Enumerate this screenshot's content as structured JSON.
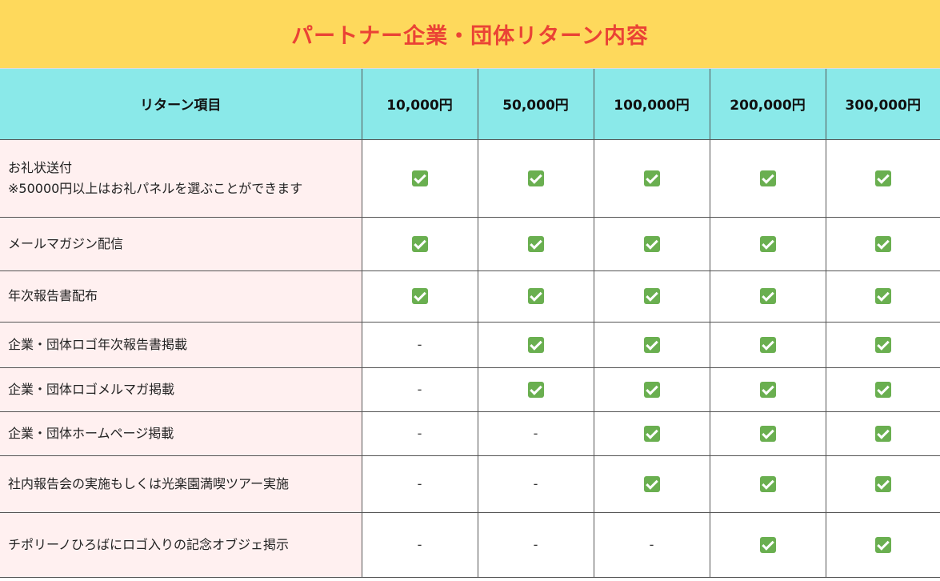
{
  "title": "パートナー企業・団体リターン内容",
  "header": {
    "item_label": "リターン項目",
    "tiers": [
      "10,000円",
      "50,000円",
      "100,000円",
      "200,000円",
      "300,000円"
    ]
  },
  "rows": [
    {
      "item_line1": "お礼状送付",
      "item_line2": "※50000円以上はお礼パネルを選ぶことができます",
      "cells": [
        "check",
        "check",
        "check",
        "check",
        "check"
      ]
    },
    {
      "item_line1": "メールマガジン配信",
      "cells": [
        "check",
        "check",
        "check",
        "check",
        "check"
      ]
    },
    {
      "item_line1": "年次報告書配布",
      "cells": [
        "check",
        "check",
        "check",
        "check",
        "check"
      ]
    },
    {
      "item_line1": "企業・団体ロゴ年次報告書掲載",
      "cells": [
        "-",
        "check",
        "check",
        "check",
        "check"
      ]
    },
    {
      "item_line1": "企業・団体ロゴメルマガ掲載",
      "cells": [
        "-",
        "check",
        "check",
        "check",
        "check"
      ]
    },
    {
      "item_line1": "企業・団体ホームページ掲載",
      "cells": [
        "-",
        "-",
        "check",
        "check",
        "check"
      ]
    },
    {
      "item_line1": "社内報告会の実施もしくは光楽園満喫ツアー実施",
      "cells": [
        "-",
        "-",
        "check",
        "check",
        "check"
      ]
    },
    {
      "item_line1": "チポリーノひろばにロゴ入りの記念オブジェ掲示",
      "cells": [
        "-",
        "-",
        "-",
        "check",
        "check"
      ]
    }
  ],
  "colors": {
    "title_bg": "#fed95c",
    "title_text": "#ea4335",
    "header_bg": "#8ae9e9",
    "item_bg": "#fff0f0",
    "check": "#6aaf50"
  },
  "icons": {
    "check": "checkbox-checked-icon"
  }
}
